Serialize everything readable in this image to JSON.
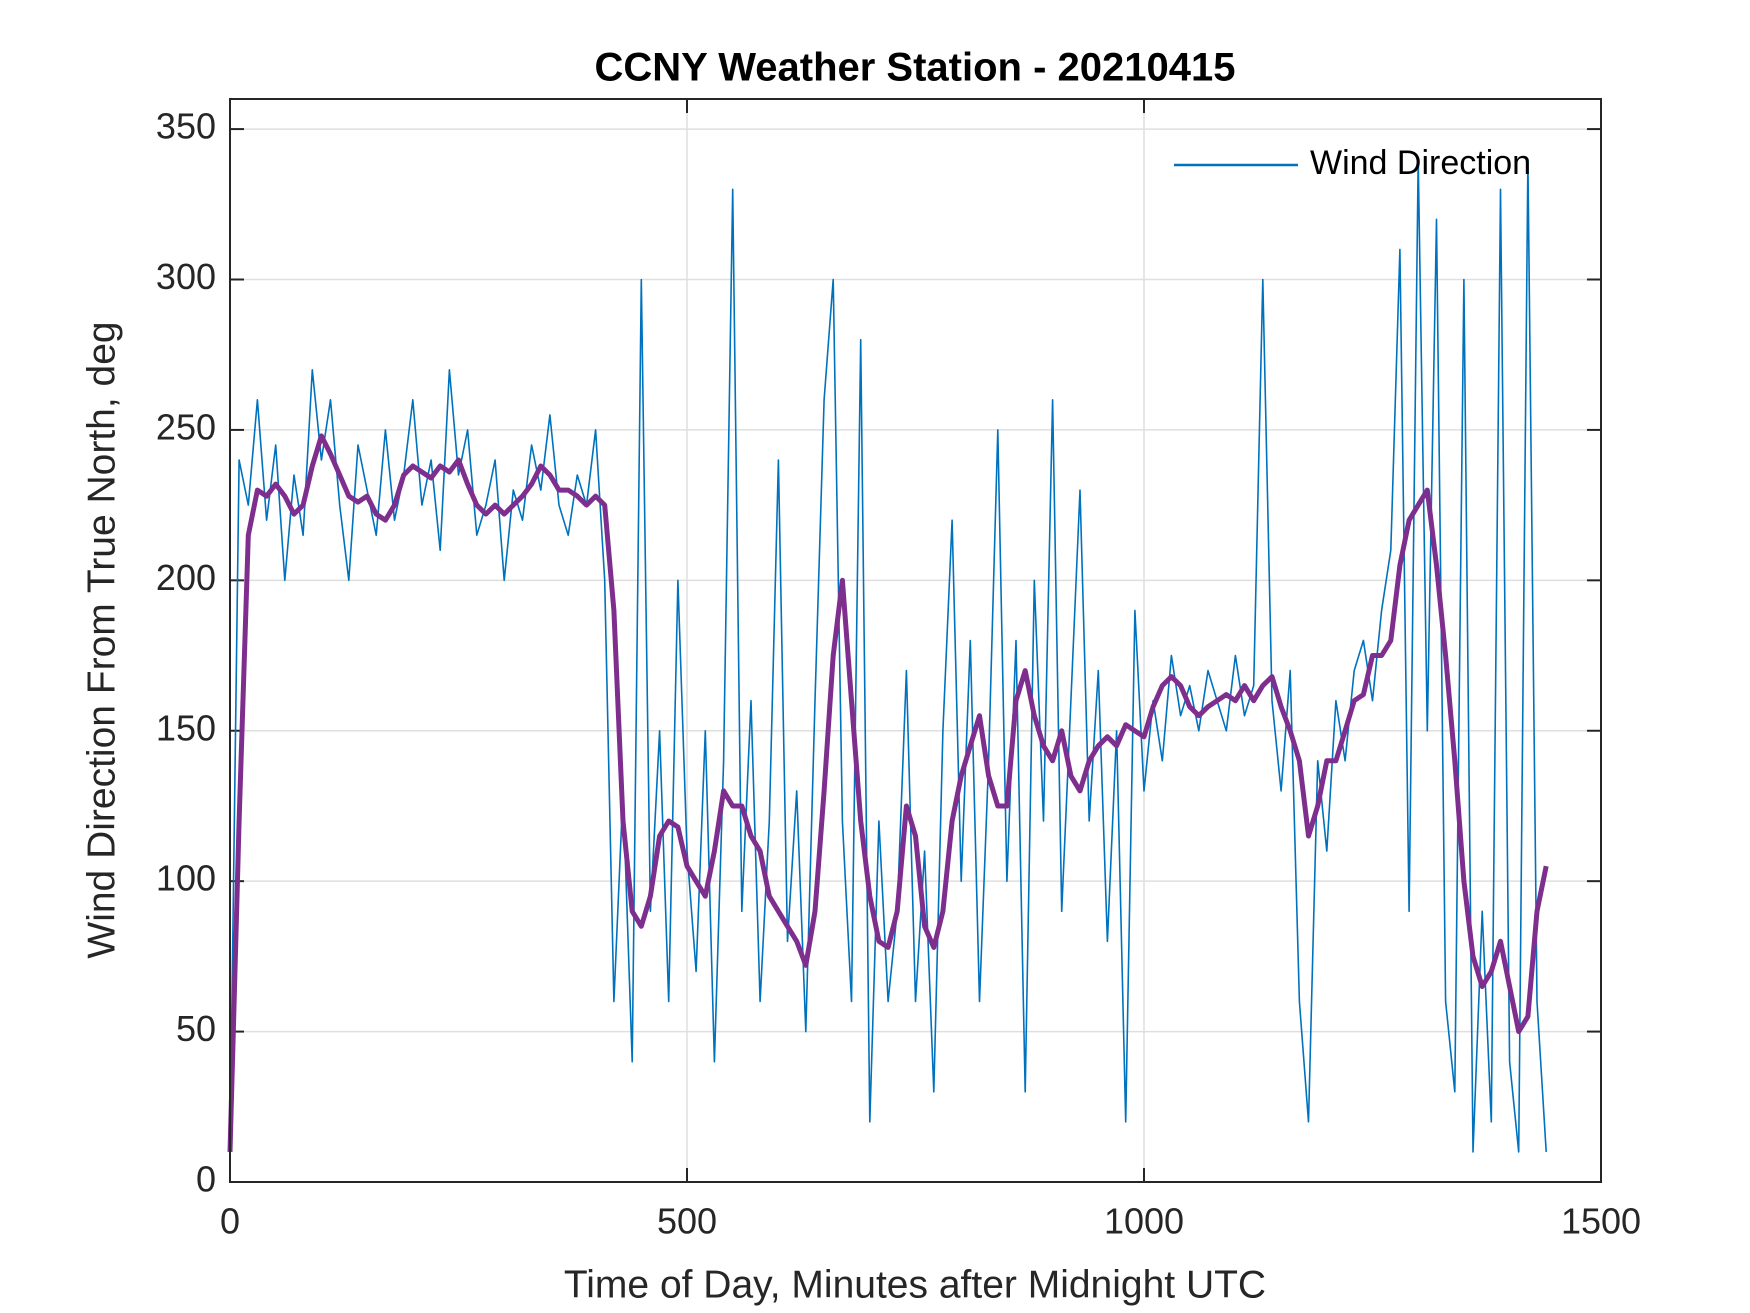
{
  "chart_data": {
    "type": "line",
    "title": "CCNY Weather Station - 20210415",
    "xlabel": "Time of Day, Minutes after Midnight UTC",
    "ylabel": "Wind Direction From True North, deg",
    "x": [
      0,
      10,
      20,
      30,
      40,
      50,
      60,
      70,
      80,
      90,
      100,
      110,
      120,
      130,
      140,
      150,
      160,
      170,
      180,
      190,
      200,
      210,
      220,
      230,
      240,
      250,
      260,
      270,
      280,
      290,
      300,
      310,
      320,
      330,
      340,
      350,
      360,
      370,
      380,
      390,
      400,
      410,
      420,
      430,
      440,
      450,
      460,
      470,
      480,
      490,
      500,
      510,
      520,
      530,
      540,
      550,
      560,
      570,
      580,
      590,
      600,
      610,
      620,
      630,
      640,
      650,
      660,
      670,
      680,
      690,
      700,
      710,
      720,
      730,
      740,
      750,
      760,
      770,
      780,
      790,
      800,
      810,
      820,
      830,
      840,
      850,
      860,
      870,
      880,
      890,
      900,
      910,
      920,
      930,
      940,
      950,
      960,
      970,
      980,
      990,
      1000,
      1010,
      1020,
      1030,
      1040,
      1050,
      1060,
      1070,
      1080,
      1090,
      1100,
      1110,
      1120,
      1130,
      1140,
      1150,
      1160,
      1170,
      1180,
      1190,
      1200,
      1210,
      1220,
      1230,
      1240,
      1250,
      1260,
      1270,
      1280,
      1290,
      1300,
      1310,
      1320,
      1330,
      1340,
      1350,
      1360,
      1370,
      1380,
      1390,
      1400,
      1410,
      1420,
      1430,
      1440
    ],
    "series": [
      {
        "name": "Wind Direction",
        "color": "#0072bd",
        "values": [
          10,
          240,
          225,
          260,
          220,
          245,
          200,
          235,
          215,
          270,
          240,
          260,
          225,
          200,
          245,
          230,
          215,
          250,
          220,
          235,
          260,
          225,
          240,
          210,
          270,
          235,
          250,
          215,
          225,
          240,
          200,
          230,
          220,
          245,
          230,
          255,
          225,
          215,
          235,
          225,
          250,
          200,
          60,
          130,
          40,
          300,
          90,
          150,
          60,
          200,
          110,
          70,
          150,
          40,
          140,
          330,
          90,
          160,
          60,
          120,
          240,
          80,
          130,
          50,
          160,
          260,
          300,
          120,
          60,
          280,
          20,
          120,
          60,
          90,
          170,
          60,
          110,
          30,
          150,
          220,
          100,
          180,
          60,
          140,
          250,
          100,
          180,
          30,
          200,
          120,
          260,
          90,
          160,
          230,
          120,
          170,
          80,
          150,
          20,
          190,
          130,
          160,
          140,
          175,
          155,
          165,
          150,
          170,
          160,
          150,
          175,
          155,
          165,
          300,
          160,
          130,
          170,
          60,
          20,
          140,
          110,
          160,
          140,
          170,
          180,
          160,
          190,
          210,
          310,
          90,
          340,
          150,
          320,
          60,
          30,
          300,
          10,
          90,
          20,
          330,
          40,
          10,
          340,
          60,
          10
        ]
      },
      {
        "color": "#7e2f8e",
        "values": [
          10,
          120,
          215,
          230,
          228,
          232,
          228,
          222,
          225,
          238,
          248,
          242,
          235,
          228,
          226,
          228,
          222,
          220,
          225,
          235,
          238,
          236,
          234,
          238,
          236,
          240,
          232,
          225,
          222,
          225,
          222,
          225,
          228,
          232,
          238,
          235,
          230,
          230,
          228,
          225,
          228,
          225,
          190,
          120,
          90,
          85,
          95,
          115,
          120,
          118,
          105,
          100,
          95,
          110,
          130,
          125,
          125,
          115,
          110,
          95,
          90,
          85,
          80,
          72,
          90,
          130,
          175,
          200,
          160,
          120,
          95,
          80,
          78,
          90,
          125,
          115,
          85,
          78,
          90,
          120,
          135,
          145,
          155,
          135,
          125,
          125,
          160,
          170,
          155,
          145,
          140,
          150,
          135,
          130,
          140,
          145,
          148,
          145,
          152,
          150,
          148,
          158,
          165,
          168,
          165,
          158,
          155,
          158,
          160,
          162,
          160,
          165,
          160,
          165,
          168,
          158,
          150,
          140,
          115,
          125,
          140,
          140,
          150,
          160,
          162,
          175,
          175,
          180,
          205,
          220,
          225,
          230,
          205,
          175,
          140,
          100,
          75,
          65,
          70,
          80,
          65,
          50,
          55,
          90,
          105
        ]
      }
    ],
    "xlim": [
      0,
      1500
    ],
    "xticks": [
      0,
      500,
      1000,
      1500
    ],
    "ylim": [
      0,
      360
    ],
    "yticks": [
      0,
      50,
      100,
      150,
      200,
      250,
      300,
      350
    ],
    "grid": true,
    "legend": "upper right"
  }
}
